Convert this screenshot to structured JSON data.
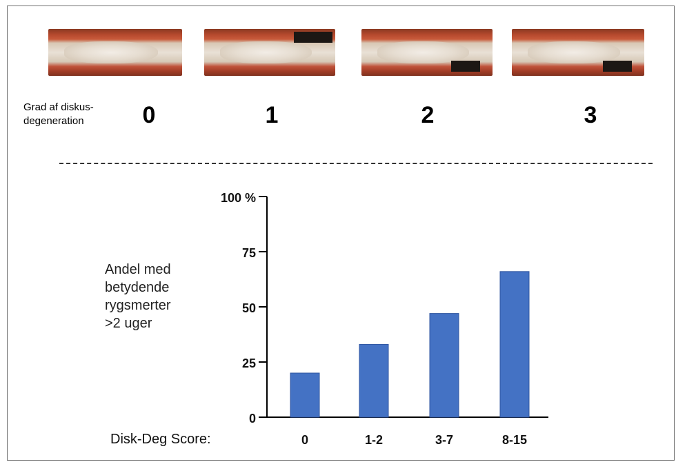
{
  "top_panel": {
    "grade_label_line1": "Grad af diskus-",
    "grade_label_line2": "degeneration",
    "grades": [
      "0",
      "1",
      "2",
      "3"
    ]
  },
  "chart_data": {
    "type": "bar",
    "categories": [
      "0",
      "1-2",
      "3-7",
      "8-15"
    ],
    "values": [
      20,
      33,
      47,
      66
    ],
    "ylim": [
      0,
      100
    ],
    "yticks": [
      "0",
      "25",
      "50",
      "75",
      "100 %"
    ],
    "ytick_values": [
      0,
      25,
      50,
      75,
      100
    ],
    "ylabel_lines": [
      "Andel med",
      "betydende",
      "rygsmerter",
      ">2 uger"
    ],
    "xlabel": "Disk-Deg Score:",
    "bar_color": "#4472c4",
    "grid": false
  }
}
